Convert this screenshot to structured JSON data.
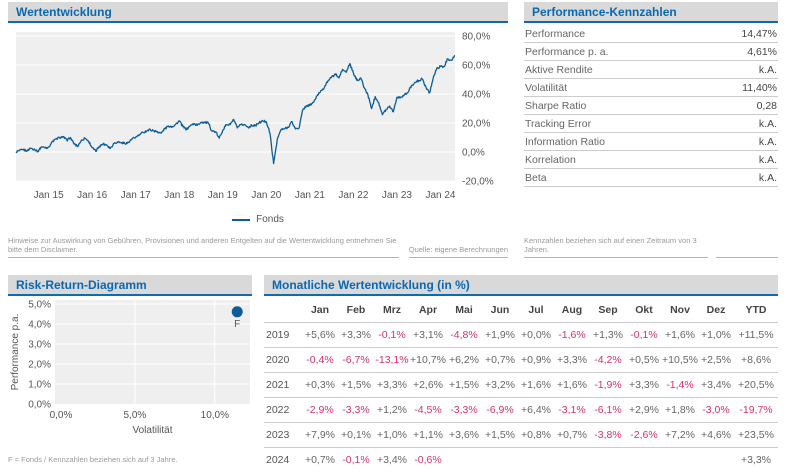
{
  "colors": {
    "title_blue": "#0a68b2",
    "header_bar_gray": "#d9d9d9",
    "header_underline_blue": "#0c6cb3",
    "plot_bg": "#efefef",
    "grid_white": "#ffffff",
    "line_blue": "#0b5c99",
    "axis_text": "#555555",
    "negative_red": "#d23368",
    "positive_gray": "#666666",
    "note_gray": "#999999"
  },
  "wertentwicklung": {
    "title": "Wertentwicklung",
    "legend": "Fonds",
    "note": "Hinweise zur Auswirkung von Gebühren, Provisionen und anderen Entgelten auf die Wertentwicklung entnehmen Sie bitte dem Disclaimer.",
    "source": "Quelle: eigene Berechnungen"
  },
  "kennzahlen": {
    "title": "Performance-Kennzahlen",
    "rows": [
      {
        "label": "Performance",
        "value": "14,47%"
      },
      {
        "label": "Performance p. a.",
        "value": "4,61%"
      },
      {
        "label": "Aktive Rendite",
        "value": "k.A."
      },
      {
        "label": "Volatilität",
        "value": "11,40%"
      },
      {
        "label": "Sharpe Ratio",
        "value": "0,28"
      },
      {
        "label": "Tracking Error",
        "value": "k.A."
      },
      {
        "label": "Information Ratio",
        "value": "k.A."
      },
      {
        "label": "Korrelation",
        "value": "k.A."
      },
      {
        "label": "Beta",
        "value": "k.A."
      }
    ],
    "note": "Kennzahlen beziehen sich auf einen Zeitraum von 3 Jahren."
  },
  "risk_return": {
    "title": "Risk-Return-Diagramm",
    "footnote": "F = Fonds / Kennzahlen beziehen sich auf 3 Jahre."
  },
  "monthly": {
    "title": "Monatliche Wertentwicklung (in %)",
    "columns": [
      "",
      "Jan",
      "Feb",
      "Mrz",
      "Apr",
      "Mai",
      "Jun",
      "Jul",
      "Aug",
      "Sep",
      "Okt",
      "Nov",
      "Dez",
      "YTD"
    ],
    "rows": [
      {
        "year": "2019",
        "values": [
          "+5,6%",
          "+3,3%",
          "-0,1%",
          "+3,1%",
          "-4,8%",
          "+1,9%",
          "+0,0%",
          "-1,6%",
          "+1,3%",
          "-0,1%",
          "+1,6%",
          "+1,0%",
          "+11,5%"
        ]
      },
      {
        "year": "2020",
        "values": [
          "-0,4%",
          "-6,7%",
          "-13,1%",
          "+10,7%",
          "+6,2%",
          "+0,7%",
          "+0,9%",
          "+3,3%",
          "-4,2%",
          "+0,5%",
          "+10,5%",
          "+2,5%",
          "+8,6%"
        ]
      },
      {
        "year": "2021",
        "values": [
          "+0,3%",
          "+1,5%",
          "+3,3%",
          "+2,6%",
          "+1,5%",
          "+3,2%",
          "+1,6%",
          "+1,6%",
          "-1,9%",
          "+3,3%",
          "-1,4%",
          "+3,4%",
          "+20,5%"
        ]
      },
      {
        "year": "2022",
        "values": [
          "-2,9%",
          "-3,3%",
          "+1,2%",
          "-4,5%",
          "-3,3%",
          "-6,9%",
          "+6,4%",
          "-3,1%",
          "-6,1%",
          "+2,9%",
          "+1,8%",
          "-3,0%",
          "-19,7%"
        ]
      },
      {
        "year": "2023",
        "values": [
          "+7,9%",
          "+0,1%",
          "+1,0%",
          "+1,1%",
          "+3,6%",
          "+1,5%",
          "+0,8%",
          "+0,7%",
          "-3,8%",
          "-2,6%",
          "+7,2%",
          "+4,6%",
          "+23,5%"
        ]
      },
      {
        "year": "2024",
        "values": [
          "+0,7%",
          "-0,1%",
          "+3,4%",
          "-0,6%",
          "",
          "",
          "",
          "",
          "",
          "",
          "",
          "",
          "+3,3%"
        ]
      }
    ]
  },
  "chart_data": [
    {
      "type": "line",
      "title": "Wertentwicklung",
      "ylabel": "",
      "xlabel": "",
      "y_unit": "%",
      "ylim": [
        -20,
        80
      ],
      "y_ticks": [
        80,
        60,
        40,
        20,
        0,
        -20
      ],
      "y_tick_labels": [
        "80,0%",
        "60,0%",
        "40,0%",
        "20,0%",
        "0,0%",
        "-20,0%"
      ],
      "x_tick_labels": [
        "Jan 15",
        "Jan 16",
        "Jan 17",
        "Jan 18",
        "Jan 19",
        "Jan 20",
        "Jan 21",
        "Jan 22",
        "Jan 23",
        "Jan 24"
      ],
      "x_tick_month_indices": [
        9,
        21,
        33,
        45,
        57,
        69,
        81,
        93,
        105,
        117
      ],
      "x_start_month": "2014-04",
      "x_end_month": "2024-05",
      "grid": true,
      "legend_position": "bottom",
      "series": [
        {
          "name": "Fonds",
          "values": [
            0,
            1,
            1.5,
            1,
            2.5,
            2,
            0.5,
            3.5,
            3,
            3.5,
            7,
            9,
            10,
            10.5,
            8,
            10,
            5.5,
            4,
            8,
            9.5,
            7.5,
            3,
            0.5,
            4,
            5.5,
            5,
            2.5,
            6,
            7,
            6.5,
            6,
            6.5,
            9,
            10,
            12,
            13.5,
            14.5,
            15.5,
            14.5,
            14,
            13,
            16,
            18,
            17.5,
            19,
            21.5,
            17.5,
            15.5,
            18,
            19.5,
            18.5,
            20.5,
            20.5,
            20,
            14.5,
            14,
            9.5,
            15.1,
            18.9,
            18.8,
            22.5,
            16.6,
            18.8,
            18.8,
            16.9,
            18.4,
            18.3,
            20.2,
            21.4,
            20.9,
            12.8,
            -8,
            8.5,
            15.2,
            16,
            17.1,
            21,
            15.9,
            16.5,
            28.7,
            31.9,
            32.3,
            34.3,
            38.7,
            42.3,
            44.5,
            49.1,
            51.5,
            53.9,
            51,
            57,
            55,
            61,
            54.4,
            49.3,
            51.1,
            44.3,
            39.5,
            29.9,
            38.2,
            33.9,
            25.7,
            29.4,
            31.7,
            27.7,
            37.8,
            37.9,
            39.3,
            40.8,
            45.9,
            48.1,
            49.3,
            50.3,
            44.6,
            40.8,
            51,
            57.9,
            59,
            58.9,
            64.3,
            63.3,
            66.5
          ]
        }
      ]
    },
    {
      "type": "scatter",
      "title": "Risk-Return-Diagramm",
      "xlabel": "Volatilität",
      "ylabel": "Performance p.a.",
      "xlim": [
        0,
        12.2
      ],
      "ylim": [
        0,
        5.2
      ],
      "x_ticks": [
        0,
        5,
        10
      ],
      "x_tick_labels": [
        "0,0%",
        "5,0%",
        "10,0%"
      ],
      "y_ticks": [
        0,
        1,
        2,
        3,
        4,
        5
      ],
      "y_tick_labels": [
        "0,0%",
        "1,0%",
        "2,0%",
        "3,0%",
        "4,0%",
        "5,0%"
      ],
      "grid": true,
      "points": [
        {
          "label": "F",
          "name": "Fonds",
          "x": 11.4,
          "y": 4.61
        }
      ]
    }
  ]
}
